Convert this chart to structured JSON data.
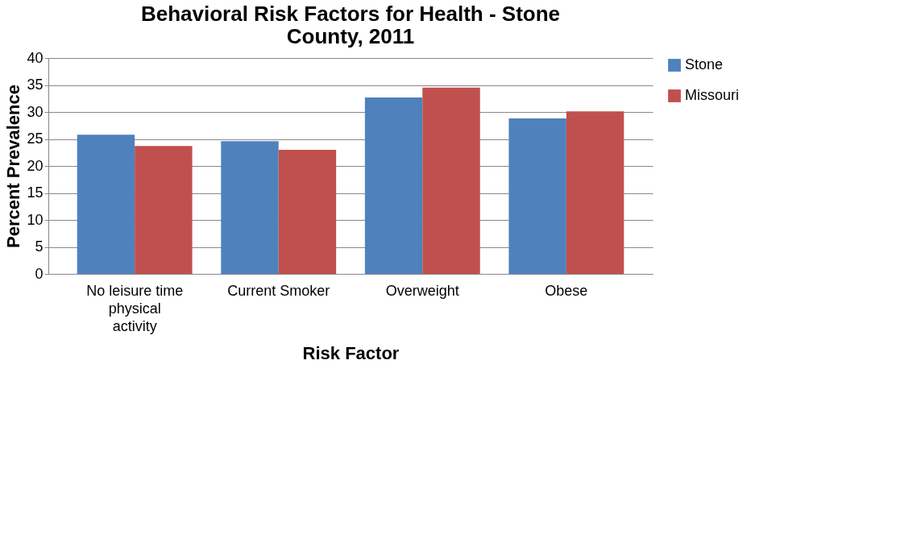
{
  "chart_data": {
    "type": "bar",
    "title": "Behavioral Risk Factors for Health - Stone County, 2011",
    "categories": [
      "No leisure time physical activity",
      "Current Smoker",
      "Overweight",
      "Obese"
    ],
    "series": [
      {
        "name": "Stone",
        "color": "#4f81bd",
        "values": [
          25.8,
          24.6,
          32.7,
          28.8
        ]
      },
      {
        "name": "Missouri",
        "color": "#c0504d",
        "values": [
          23.7,
          23.0,
          34.5,
          30.1
        ]
      }
    ],
    "xlabel": "Risk Factor",
    "ylabel": "Percent Prevalence",
    "ylim": [
      0,
      40
    ],
    "yticks": [
      0,
      5,
      10,
      15,
      20,
      25,
      30,
      35,
      40
    ],
    "grid": "y",
    "legend": "right"
  }
}
